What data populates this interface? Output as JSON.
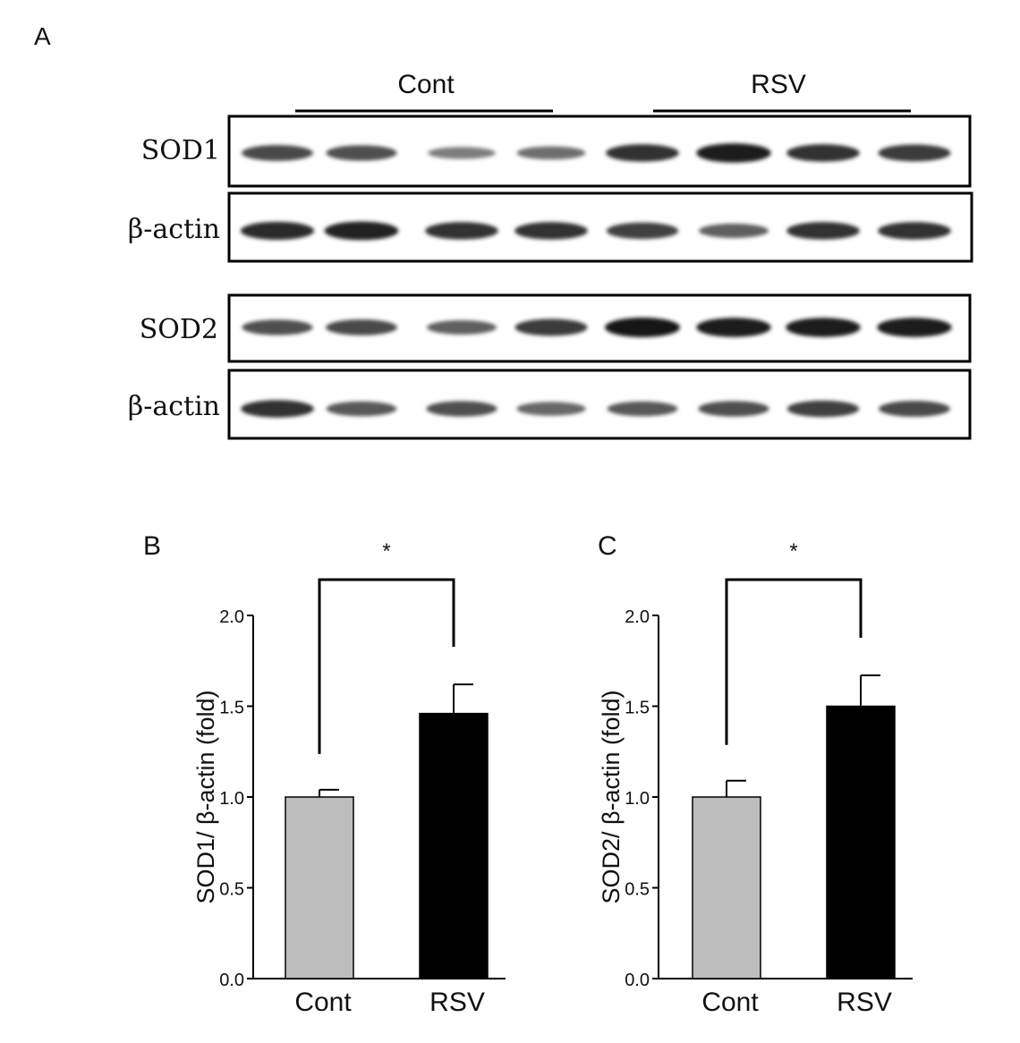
{
  "panel_labels": [
    "A",
    "B",
    "C"
  ],
  "blot": {
    "groups": [
      {
        "label": "Cont",
        "lanes": 4
      },
      {
        "label": "RSV",
        "lanes": 4
      }
    ],
    "rows": [
      {
        "label": "SOD1",
        "intensity": [
          0.65,
          0.6,
          0.3,
          0.4,
          0.8,
          0.95,
          0.8,
          0.75
        ]
      },
      {
        "label": "β-actin",
        "intensity": [
          0.85,
          0.9,
          0.8,
          0.8,
          0.7,
          0.5,
          0.8,
          0.8
        ]
      },
      {
        "label": "SOD2",
        "intensity": [
          0.6,
          0.65,
          0.5,
          0.75,
          1.0,
          0.95,
          0.95,
          0.95
        ]
      },
      {
        "label": "β-actin",
        "intensity": [
          0.8,
          0.55,
          0.6,
          0.45,
          0.55,
          0.6,
          0.7,
          0.65
        ]
      }
    ]
  },
  "chart_data": [
    {
      "type": "bar",
      "panel": "B",
      "categories": [
        "Cont",
        "RSV"
      ],
      "values": [
        1.0,
        1.46
      ],
      "errors": [
        0.04,
        0.16
      ],
      "colors": [
        "#bdbdbd",
        "#000000"
      ],
      "ylabel": "SOD1/ β-actin (fold)",
      "xlabel": "",
      "ylim": [
        0,
        2.0
      ],
      "yticks": [
        "0.0",
        "0.5",
        "1.0",
        "1.5",
        "2.0"
      ],
      "significance": "*"
    },
    {
      "type": "bar",
      "panel": "C",
      "categories": [
        "Cont",
        "RSV"
      ],
      "values": [
        1.0,
        1.5
      ],
      "errors": [
        0.09,
        0.17
      ],
      "colors": [
        "#bdbdbd",
        "#000000"
      ],
      "ylabel": "SOD2/ β-actin (fold)",
      "xlabel": "",
      "ylim": [
        0,
        2.0
      ],
      "yticks": [
        "0.0",
        "0.5",
        "1.0",
        "1.5",
        "2.0"
      ],
      "significance": "*"
    }
  ]
}
